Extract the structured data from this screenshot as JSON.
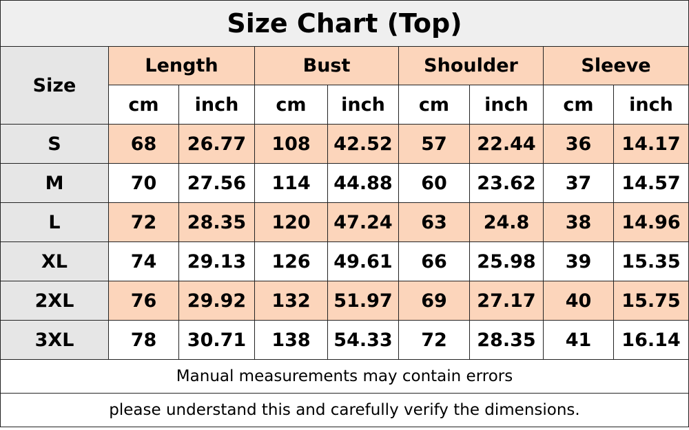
{
  "title": "Size Chart (Top)",
  "table": {
    "size_header": "Size",
    "groups": [
      {
        "name": "Length",
        "units": [
          "cm",
          "inch"
        ]
      },
      {
        "name": "Bust",
        "units": [
          "cm",
          "inch"
        ]
      },
      {
        "name": "Shoulder",
        "units": [
          "cm",
          "inch"
        ]
      },
      {
        "name": "Sleeve",
        "units": [
          "cm",
          "inch"
        ]
      }
    ],
    "rows": [
      [
        "S",
        68,
        26.77,
        108,
        42.52,
        57,
        22.44,
        36,
        14.17
      ],
      [
        "M",
        70,
        27.56,
        114,
        44.88,
        60,
        23.62,
        37,
        14.57
      ],
      [
        "L",
        72,
        28.35,
        120,
        47.24,
        63,
        24.8,
        38,
        14.96
      ],
      [
        "XL",
        74,
        29.13,
        126,
        49.61,
        66,
        25.98,
        39,
        15.35
      ],
      [
        "2XL",
        76,
        29.92,
        132,
        51.97,
        69,
        27.17,
        40,
        15.75
      ],
      [
        "3XL",
        78,
        30.71,
        138,
        54.33,
        72,
        28.35,
        41,
        16.14
      ]
    ]
  },
  "notes": [
    "Manual measurements may contain errors",
    "please understand this and carefully verify the dimensions."
  ]
}
